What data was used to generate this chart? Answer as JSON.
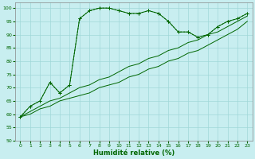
{
  "xlabel": "Humidité relative (%)",
  "xlim": [
    -0.5,
    23.5
  ],
  "ylim": [
    50,
    102
  ],
  "xticks": [
    0,
    1,
    2,
    3,
    4,
    5,
    6,
    7,
    8,
    9,
    10,
    11,
    12,
    13,
    14,
    15,
    16,
    17,
    18,
    19,
    20,
    21,
    22,
    23
  ],
  "yticks": [
    50,
    55,
    60,
    65,
    70,
    75,
    80,
    85,
    90,
    95,
    100
  ],
  "bg_color": "#c8eef0",
  "grid_color": "#a0d8d8",
  "line_color": "#006600",
  "series": [
    {
      "x": [
        0,
        1,
        2,
        3,
        4,
        5,
        6,
        7,
        8,
        9,
        10,
        11,
        12,
        13,
        14,
        15,
        16,
        17,
        18,
        19,
        20,
        21,
        22,
        23
      ],
      "y": [
        59,
        63,
        65,
        72,
        68,
        71,
        96,
        99,
        100,
        100,
        99,
        98,
        98,
        99,
        98,
        95,
        91,
        91,
        89,
        90,
        93,
        95,
        96,
        98
      ],
      "style": "dotted",
      "marker": "+"
    },
    {
      "x": [
        0,
        1,
        2,
        3,
        4,
        5,
        6,
        7,
        8,
        9,
        10,
        11,
        12,
        13,
        14,
        15,
        16,
        17,
        18,
        19,
        20,
        21,
        22,
        23
      ],
      "y": [
        59,
        63,
        65,
        72,
        68,
        71,
        96,
        99,
        100,
        100,
        99,
        98,
        98,
        99,
        98,
        95,
        91,
        91,
        89,
        90,
        93,
        95,
        96,
        98
      ],
      "style": "solid",
      "marker": "+"
    },
    {
      "x": [
        0,
        1,
        2,
        3,
        4,
        5,
        6,
        7,
        8,
        9,
        10,
        11,
        12,
        13,
        14,
        15,
        16,
        17,
        18,
        19,
        20,
        21,
        22,
        23
      ],
      "y": [
        59,
        61,
        63,
        65,
        66,
        68,
        70,
        71,
        73,
        74,
        76,
        78,
        79,
        81,
        82,
        84,
        85,
        87,
        88,
        90,
        91,
        93,
        95,
        97
      ],
      "style": "solid",
      "marker": null
    },
    {
      "x": [
        0,
        1,
        2,
        3,
        4,
        5,
        6,
        7,
        8,
        9,
        10,
        11,
        12,
        13,
        14,
        15,
        16,
        17,
        18,
        19,
        20,
        21,
        22,
        23
      ],
      "y": [
        59,
        60,
        62,
        63,
        65,
        66,
        67,
        68,
        70,
        71,
        72,
        74,
        75,
        77,
        78,
        80,
        81,
        83,
        84,
        86,
        88,
        90,
        92,
        95
      ],
      "style": "solid",
      "marker": null
    }
  ]
}
